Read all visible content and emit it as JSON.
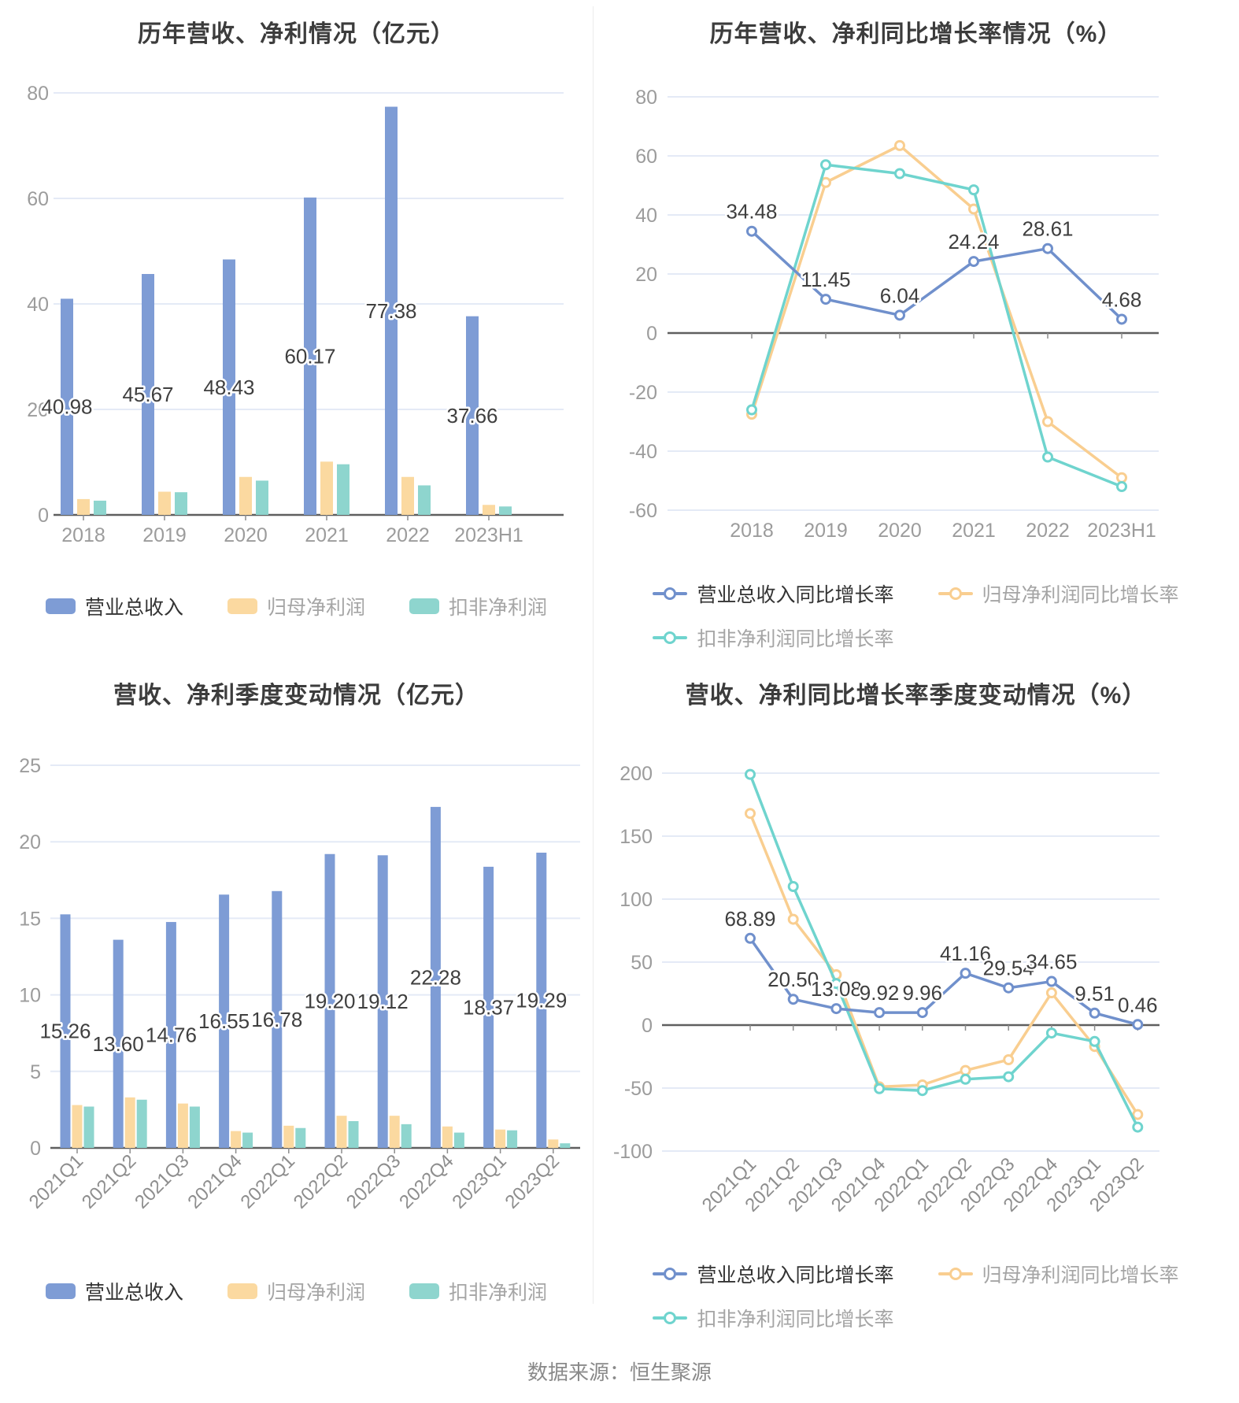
{
  "palette": {
    "revenue_bar": "#7E9CD5",
    "net_profit_bar": "#FBD9A0",
    "non_gaap_bar": "#8ED5CE",
    "revenue_line": "#7090CC",
    "net_profit_line": "#F9CE90",
    "non_gaap_line": "#6FD4CE",
    "grid": "#E4EAF6",
    "zero_axis": "#5F5F5F",
    "tick": "#8C8C8C",
    "axis_text": "#9C9C9C",
    "value_text": "#3F3F3F",
    "legend_active_text": "#333333",
    "legend_muted_text": "#A5A5A5"
  },
  "chart_data": [
    {
      "id": "annual-amounts",
      "type": "bar",
      "title": "历年营收、净利情况（亿元）",
      "categories": [
        "2018",
        "2019",
        "2020",
        "2021",
        "2022",
        "2023H1"
      ],
      "series": [
        {
          "name": "营业总收入",
          "values": [
            40.98,
            45.67,
            48.43,
            60.17,
            77.38,
            37.66
          ],
          "labels": [
            "40.98",
            "45.67",
            "48.43",
            "60.17",
            "77.38",
            "37.66"
          ]
        },
        {
          "name": "归母净利润",
          "values": [
            3.0,
            4.4,
            7.2,
            10.1,
            7.2,
            1.9
          ]
        },
        {
          "name": "扣非净利润",
          "values": [
            2.7,
            4.3,
            6.5,
            9.6,
            5.6,
            1.6
          ]
        }
      ],
      "ylim": [
        0,
        80
      ],
      "yticks": [
        0,
        20,
        40,
        60,
        80
      ],
      "grid": true,
      "legend_position": "bottom"
    },
    {
      "id": "annual-growth",
      "type": "line",
      "title": "历年营收、净利同比增长率情况（%）",
      "categories": [
        "2018",
        "2019",
        "2020",
        "2021",
        "2022",
        "2023H1"
      ],
      "series": [
        {
          "name": "营业总收入同比增长率",
          "values": [
            34.48,
            11.45,
            6.04,
            24.24,
            28.61,
            4.68
          ],
          "labels": [
            "34.48",
            "11.45",
            "6.04",
            "24.24",
            "28.61",
            "4.68"
          ]
        },
        {
          "name": "归母净利润同比增长率",
          "values": [
            -27.5,
            51,
            63.5,
            42,
            -30,
            -49
          ]
        },
        {
          "name": "扣非净利润同比增长率",
          "values": [
            -26,
            57,
            54,
            48.5,
            -42,
            -52
          ]
        }
      ],
      "ylim": [
        -60,
        80
      ],
      "yticks": [
        -60,
        -40,
        -20,
        0,
        20,
        40,
        60,
        80
      ],
      "grid": true,
      "legend_position": "bottom"
    },
    {
      "id": "quarterly-amounts",
      "type": "bar",
      "title": "营收、净利季度变动情况（亿元）",
      "categories": [
        "2021Q1",
        "2021Q2",
        "2021Q3",
        "2021Q4",
        "2022Q1",
        "2022Q2",
        "2022Q3",
        "2022Q4",
        "2023Q1",
        "2023Q2"
      ],
      "series": [
        {
          "name": "营业总收入",
          "values": [
            15.26,
            13.6,
            14.76,
            16.55,
            16.78,
            19.2,
            19.12,
            22.28,
            18.37,
            19.29
          ],
          "labels": [
            "15.26",
            "13.60",
            "14.76",
            "16.55",
            "16.78",
            "19.20",
            "19.12",
            "22.28",
            "18.37",
            "19.29"
          ]
        },
        {
          "name": "归母净利润",
          "values": [
            2.8,
            3.3,
            2.9,
            1.1,
            1.45,
            2.1,
            2.1,
            1.4,
            1.2,
            0.55
          ]
        },
        {
          "name": "扣非净利润",
          "values": [
            2.7,
            3.15,
            2.7,
            1.0,
            1.3,
            1.75,
            1.55,
            1.0,
            1.15,
            0.3
          ]
        }
      ],
      "ylim": [
        0,
        25
      ],
      "yticks": [
        0,
        5,
        10,
        15,
        20,
        25
      ],
      "grid": true,
      "x_label_rotate": 45,
      "legend_position": "bottom"
    },
    {
      "id": "quarterly-growth",
      "type": "line",
      "title": "营收、净利同比增长率季度变动情况（%）",
      "categories": [
        "2021Q1",
        "2021Q2",
        "2021Q3",
        "2021Q4",
        "2022Q1",
        "2022Q2",
        "2022Q3",
        "2022Q4",
        "2023Q1",
        "2023Q2"
      ],
      "series": [
        {
          "name": "营业总收入同比增长率",
          "values": [
            68.89,
            20.5,
            13.08,
            9.92,
            9.96,
            41.16,
            29.54,
            34.65,
            9.51,
            0.46
          ],
          "labels": [
            "68.89",
            "20.50",
            "13.08",
            "9.92",
            "9.96",
            "41.16",
            "29.54",
            "34.65",
            "9.51",
            "0.46"
          ]
        },
        {
          "name": "归母净利润同比增长率",
          "values": [
            168,
            84,
            40,
            -49,
            -47.5,
            -36,
            -27.5,
            25.6,
            -17,
            -71
          ]
        },
        {
          "name": "扣非净利润同比增长率",
          "values": [
            199,
            110,
            33,
            -50.5,
            -52,
            -43,
            -41,
            -6.3,
            -13,
            -81
          ]
        }
      ],
      "ylim": [
        -100,
        200
      ],
      "yticks": [
        -100,
        -50,
        0,
        50,
        100,
        150,
        200
      ],
      "grid": true,
      "x_label_rotate": 45,
      "legend_position": "bottom"
    }
  ],
  "footer": {
    "source": "数据来源：恒生聚源"
  }
}
